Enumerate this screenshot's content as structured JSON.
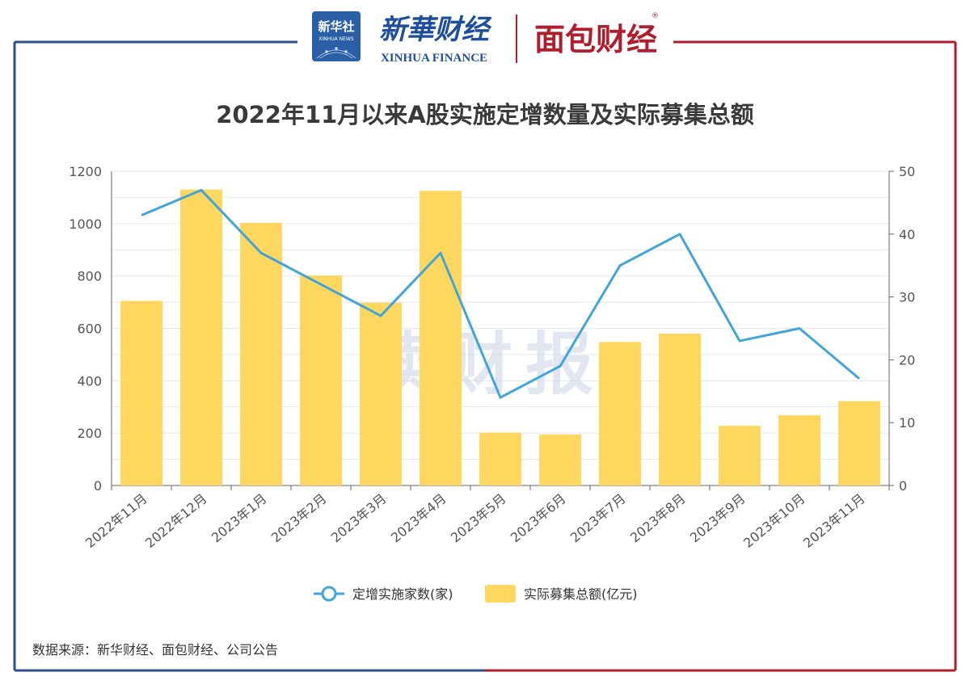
{
  "brand": {
    "xinhuashe_text": "新华社",
    "xinhuashe_sub": "XINHUA NEWS",
    "xinhua_finance_cn": "新華财经",
    "xinhua_finance_en": "XINHUA FINANCE",
    "mianbao": "面包财经",
    "watermark": "读财报"
  },
  "colors": {
    "bar": "#FFD75E",
    "line": "#3FA5DB",
    "frame_left": "#2E4E8C",
    "frame_right": "#B01E2E",
    "grid": "#e3e6ee",
    "axis": "#666666"
  },
  "chart_data": {
    "type": "bar",
    "title": "2022年11月以来A股实施定增数量及实际募集总额",
    "categories": [
      "2022年11月",
      "2022年12月",
      "2023年1月",
      "2023年2月",
      "2023年3月",
      "2023年4月",
      "2023年5月",
      "2023年6月",
      "2023年7月",
      "2023年8月",
      "2023年9月",
      "2023年10月",
      "2023年11月"
    ],
    "series": [
      {
        "name": "实际募集总额(亿元)",
        "type": "bar",
        "axis": "left",
        "values": [
          705,
          1130,
          1003,
          802,
          698,
          1125,
          202,
          195,
          548,
          580,
          228,
          268,
          322
        ]
      },
      {
        "name": "定增实施家数(家)",
        "type": "line",
        "axis": "right",
        "values": [
          43,
          47,
          37,
          32,
          27,
          37,
          14,
          19,
          35,
          40,
          23,
          25,
          17
        ]
      }
    ],
    "left_axis": {
      "min": 0,
      "max": 1200,
      "ticks": [
        0,
        200,
        400,
        600,
        800,
        1000,
        1200
      ]
    },
    "right_axis": {
      "min": 0,
      "max": 50,
      "ticks": [
        0,
        10,
        20,
        30,
        40,
        50
      ]
    },
    "grid": true,
    "legend": "bottom"
  },
  "footer": {
    "source": "数据来源：新华财经、面包财经、公司公告"
  }
}
